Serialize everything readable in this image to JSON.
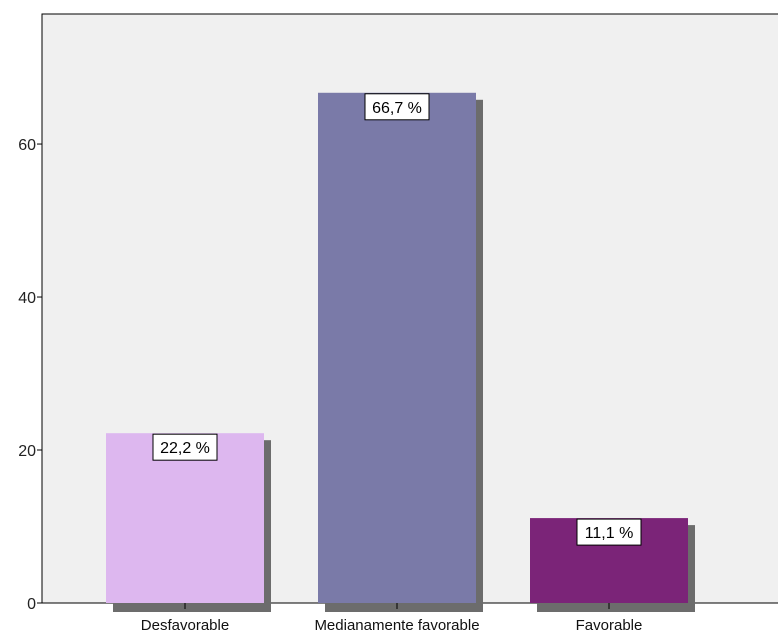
{
  "chart_data": {
    "type": "bar",
    "title": "",
    "xlabel": "",
    "ylabel": "",
    "categories": [
      "Desfavorable",
      "Medianamente favorable",
      "Favorable"
    ],
    "values": [
      22.2,
      66.7,
      11.1
    ],
    "data_labels": [
      "22,2 %",
      "66,7 %",
      "11,1 %"
    ],
    "colors": [
      "#ddb7ef",
      "#7a7aa8",
      "#7b2478"
    ],
    "shadow_color": "#6c6c6c",
    "plot_background": "#f0f0f0",
    "ylim": [
      0,
      77
    ],
    "yticks": [
      0,
      20,
      40,
      60
    ],
    "ytick_labels": [
      "0",
      "20",
      "40",
      "60"
    ],
    "grid": false,
    "legend": "none"
  }
}
